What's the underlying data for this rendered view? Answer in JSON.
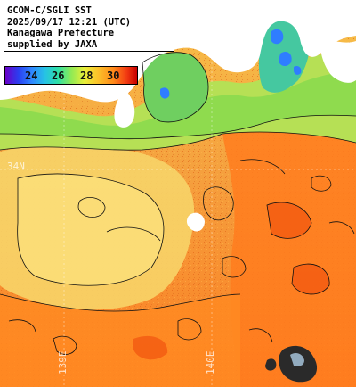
{
  "title_lines": [
    "GCOM-C/SGLI SST",
    "2025/09/17 12:21 (UTC)",
    "Kanagawa Prefecture",
    "supplied by JAXA"
  ],
  "colorbar": {
    "ticks": [
      "24",
      "26",
      "28",
      "30"
    ]
  },
  "grid_labels": {
    "latitude": [
      "34N"
    ],
    "longitude": [
      "139E",
      "140E"
    ]
  },
  "colors": {
    "land": "#ffffff",
    "cold": "#6a00c8",
    "mid": "#8fea55",
    "warm": "#ff8a1a",
    "hot": "#c80000",
    "contour": "#111111",
    "grid": "#ffffff"
  }
}
